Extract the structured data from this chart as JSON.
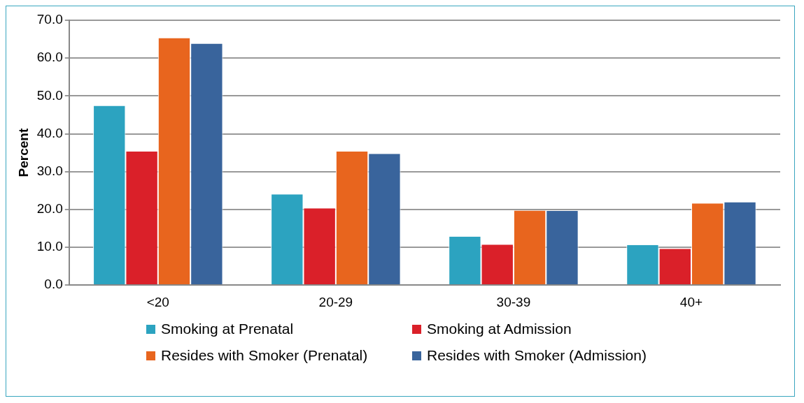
{
  "chart_data": {
    "type": "bar",
    "ylabel": "Percent",
    "categories": [
      "<20",
      "20-29",
      "30-39",
      "40+"
    ],
    "series": [
      {
        "name": "Smoking at Prenatal",
        "color": "#2ca3c0",
        "values": [
          47.4,
          24.0,
          12.8,
          10.6
        ]
      },
      {
        "name": "Smoking at Admission",
        "color": "#da2029",
        "values": [
          35.3,
          20.3,
          10.7,
          9.6
        ]
      },
      {
        "name": "Resides with Smoker (Prenatal)",
        "color": "#e8651e",
        "values": [
          65.3,
          35.3,
          19.7,
          21.6
        ]
      },
      {
        "name": "Resides with Smoker (Admission)",
        "color": "#39649c",
        "values": [
          63.8,
          34.7,
          19.6,
          21.9
        ]
      }
    ],
    "ylim": [
      0,
      70
    ],
    "yticks": [
      {
        "value": 0,
        "label": "0.0"
      },
      {
        "value": 10,
        "label": "10.0"
      },
      {
        "value": 20,
        "label": "20.0"
      },
      {
        "value": 30,
        "label": "30.0"
      },
      {
        "value": 40,
        "label": "40.0"
      },
      {
        "value": 50,
        "label": "50.0"
      },
      {
        "value": 60,
        "label": "60.0"
      },
      {
        "value": 70,
        "label": "70.0"
      }
    ],
    "grid": "y",
    "legend": "bottom"
  }
}
